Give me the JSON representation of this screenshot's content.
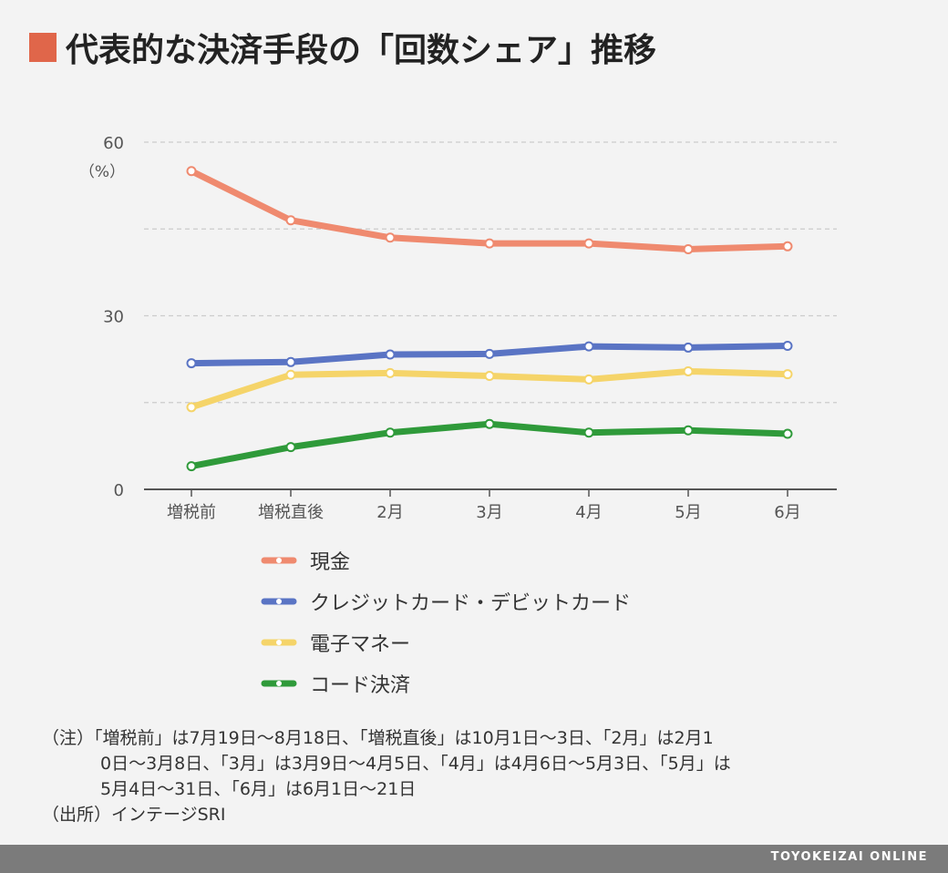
{
  "title": "代表的な決済手段の「回数シェア」推移",
  "chart_data": {
    "type": "line",
    "unit_label": "（%）",
    "categories": [
      "増税前",
      "増税直後",
      "2月",
      "3月",
      "4月",
      "5月",
      "6月"
    ],
    "y_ticks": [
      0,
      30,
      60
    ],
    "ylim": [
      0,
      60
    ],
    "minor_gridlines": [
      15,
      45
    ],
    "series": [
      {
        "name": "現金",
        "color": "#ef8a6f",
        "values": [
          55.0,
          46.5,
          43.5,
          42.5,
          42.5,
          41.5,
          42.0
        ]
      },
      {
        "name": "クレジットカード・デビットカード",
        "color": "#5a74c4",
        "values": [
          21.8,
          22.0,
          23.3,
          23.4,
          24.7,
          24.5,
          24.8
        ]
      },
      {
        "name": "電子マネー",
        "color": "#f5d469",
        "values": [
          14.2,
          19.8,
          20.1,
          19.6,
          19.0,
          20.4,
          19.9
        ]
      },
      {
        "name": "コード決済",
        "color": "#2f9a3a",
        "values": [
          4.0,
          7.3,
          9.8,
          11.3,
          9.8,
          10.2,
          9.6
        ]
      }
    ]
  },
  "notes": {
    "line1": "（注）「増税前」は7月19日～8月18日、「増税直後」は10月1日～3日、「2月」は2月1",
    "line2": "0日～3月8日、「3月」は3月9日～4月5日、「4月」は4月6日～5月3日、「5月」は",
    "line3": "5月4日～31日、「6月」は6月1日～21日",
    "source": "（出所）インテージSRI"
  },
  "footer": "TOYOKEIZAI ONLINE"
}
